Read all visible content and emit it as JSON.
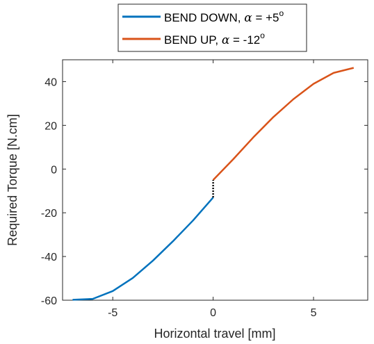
{
  "chart_data": {
    "type": "line",
    "xlabel": "Horizontal travel [mm]",
    "ylabel": "Required Torque [N.cm]",
    "xlim": [
      -7.5,
      7.7
    ],
    "ylim": [
      -60,
      50
    ],
    "xticks": [
      -5,
      0,
      5
    ],
    "yticks": [
      -60,
      -40,
      -20,
      0,
      20,
      40
    ],
    "grid": false,
    "legend_position": "top-center, outside plot",
    "series": [
      {
        "name": "BEND DOWN, α = +5°",
        "legend_prefix": "BEND DOWN, ",
        "legend_symbol": "α",
        "legend_value": " = +5",
        "legend_superscript": "o",
        "color": "#0072BD",
        "x": [
          -7,
          -6,
          -5,
          -4,
          -3,
          -2,
          -1,
          0
        ],
        "y": [
          -59.8,
          -59.4,
          -55.8,
          -49.8,
          -41.9,
          -33.0,
          -23.5,
          -13.0
        ]
      },
      {
        "name": "BEND UP, α = -12°",
        "legend_prefix": "BEND UP, ",
        "legend_symbol": "α",
        "legend_value": " = -12",
        "legend_superscript": "o",
        "color": "#D95319",
        "x": [
          0,
          1,
          2,
          3,
          4,
          5,
          6,
          7
        ],
        "y": [
          -5.0,
          4.5,
          14.5,
          23.8,
          32.0,
          39.0,
          44.0,
          46.3
        ]
      }
    ],
    "connector": {
      "x": [
        0,
        0
      ],
      "y": [
        -13.0,
        -5.0
      ],
      "style": "dotted",
      "color": "#000000"
    }
  }
}
